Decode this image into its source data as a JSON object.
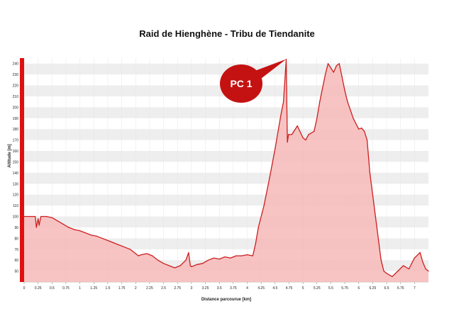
{
  "chart_data": {
    "type": "area",
    "title": "Raid de Hienghène - Tribu de Tiendanite",
    "xlabel": "Distance parcourue [km]",
    "ylabel": "Altitude [m]",
    "xlim": [
      0,
      7.25
    ],
    "ylim": [
      40,
      245
    ],
    "x_ticks": [
      "0",
      "0.25",
      "0.5",
      "0.75",
      "1",
      "1.25",
      "1.5",
      "1.75",
      "2",
      "2.25",
      "2.5",
      "2.75",
      "3",
      "3.25",
      "3.5",
      "3.75",
      "4",
      "4.25",
      "4.5",
      "4.75",
      "5",
      "5.25",
      "5.5",
      "5.75",
      "6",
      "6.25",
      "6.5",
      "6.75",
      "7"
    ],
    "y_ticks": [
      "50",
      "60",
      "70",
      "80",
      "90",
      "100",
      "110",
      "120",
      "130",
      "140",
      "150",
      "160",
      "170",
      "180",
      "190",
      "200",
      "210",
      "220",
      "230",
      "240"
    ],
    "grid": true,
    "colors": {
      "line": "#cc1f1f",
      "fill": "#f7b8b8",
      "band": "#eeeeee",
      "left_bar": "#e01010"
    },
    "annotation": {
      "text": "PC 1",
      "x": 4.7,
      "y": 244
    },
    "series": [
      {
        "x": [
          0,
          0.2,
          0.22,
          0.25,
          0.27,
          0.3,
          0.4,
          0.5,
          0.6,
          0.7,
          0.8,
          0.9,
          1.0,
          1.1,
          1.2,
          1.3,
          1.4,
          1.5,
          1.6,
          1.7,
          1.8,
          1.9,
          2.0,
          2.05,
          2.1,
          2.2,
          2.3,
          2.4,
          2.5,
          2.6,
          2.7,
          2.8,
          2.9,
          2.95,
          2.98,
          3.0,
          3.1,
          3.2,
          3.3,
          3.4,
          3.5,
          3.6,
          3.7,
          3.8,
          3.9,
          4.0,
          4.1,
          4.15,
          4.2,
          4.3,
          4.4,
          4.5,
          4.6,
          4.65,
          4.7,
          4.72,
          4.74,
          4.8,
          4.9,
          5.0,
          5.05,
          5.1,
          5.2,
          5.25,
          5.3,
          5.4,
          5.45,
          5.5,
          5.55,
          5.6,
          5.65,
          5.7,
          5.75,
          5.8,
          5.9,
          6.0,
          6.05,
          6.1,
          6.15,
          6.2,
          6.3,
          6.4,
          6.45,
          6.5,
          6.6,
          6.7,
          6.8,
          6.9,
          7.0,
          7.1,
          7.15,
          7.2,
          7.25
        ],
        "y": [
          100,
          100,
          90,
          98,
          92,
          100,
          100,
          99,
          96,
          93,
          90,
          88,
          87,
          85,
          83,
          82,
          80,
          78,
          76,
          74,
          72,
          70,
          66,
          64,
          65,
          66,
          64,
          60,
          57,
          55,
          53,
          55,
          60,
          67,
          55,
          54,
          56,
          57,
          60,
          62,
          61,
          63,
          62,
          64,
          64,
          65,
          64,
          75,
          90,
          110,
          135,
          162,
          192,
          205,
          244,
          168,
          175,
          175,
          183,
          172,
          170,
          175,
          178,
          190,
          205,
          230,
          240,
          236,
          232,
          238,
          240,
          228,
          215,
          205,
          190,
          180,
          181,
          178,
          170,
          140,
          100,
          60,
          50,
          48,
          45,
          50,
          55,
          52,
          62,
          67,
          58,
          52,
          50
        ]
      }
    ]
  }
}
